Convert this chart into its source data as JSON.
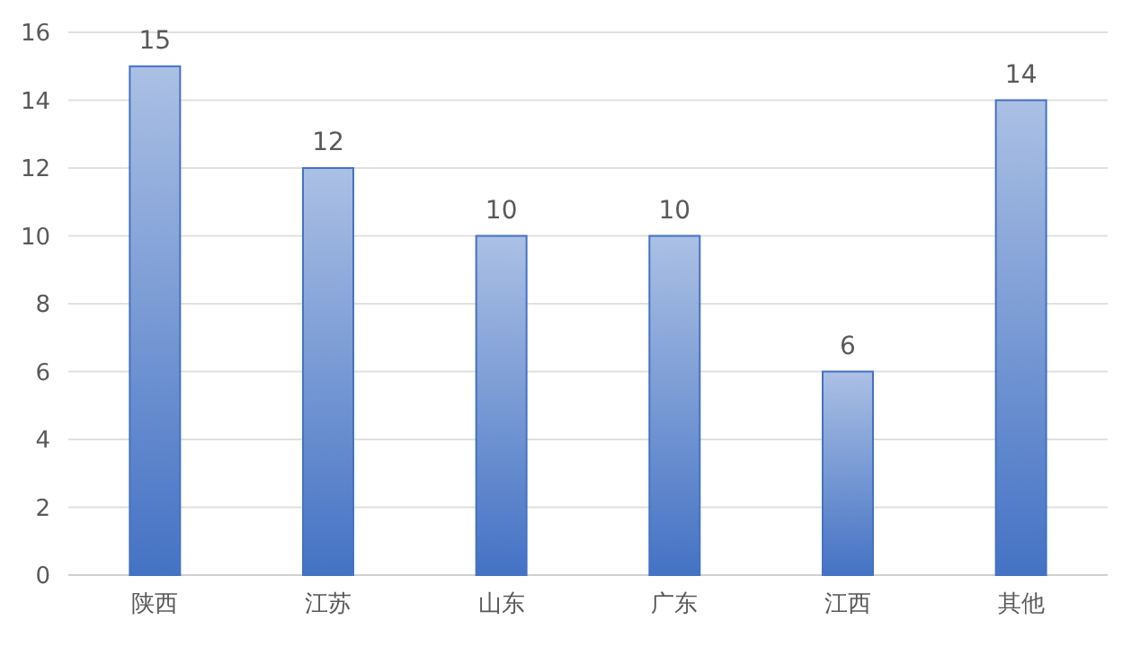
{
  "chart_data": {
    "type": "bar",
    "categories": [
      "陕西",
      "江苏",
      "山东",
      "广东",
      "江西",
      "其他"
    ],
    "values": [
      15,
      12,
      10,
      10,
      6,
      14
    ],
    "color": "#4472c4",
    "ylim": [
      0,
      16
    ],
    "yticks": [
      0,
      2,
      4,
      6,
      8,
      10,
      12,
      14,
      16
    ],
    "grid": "y",
    "data_labels": true
  }
}
